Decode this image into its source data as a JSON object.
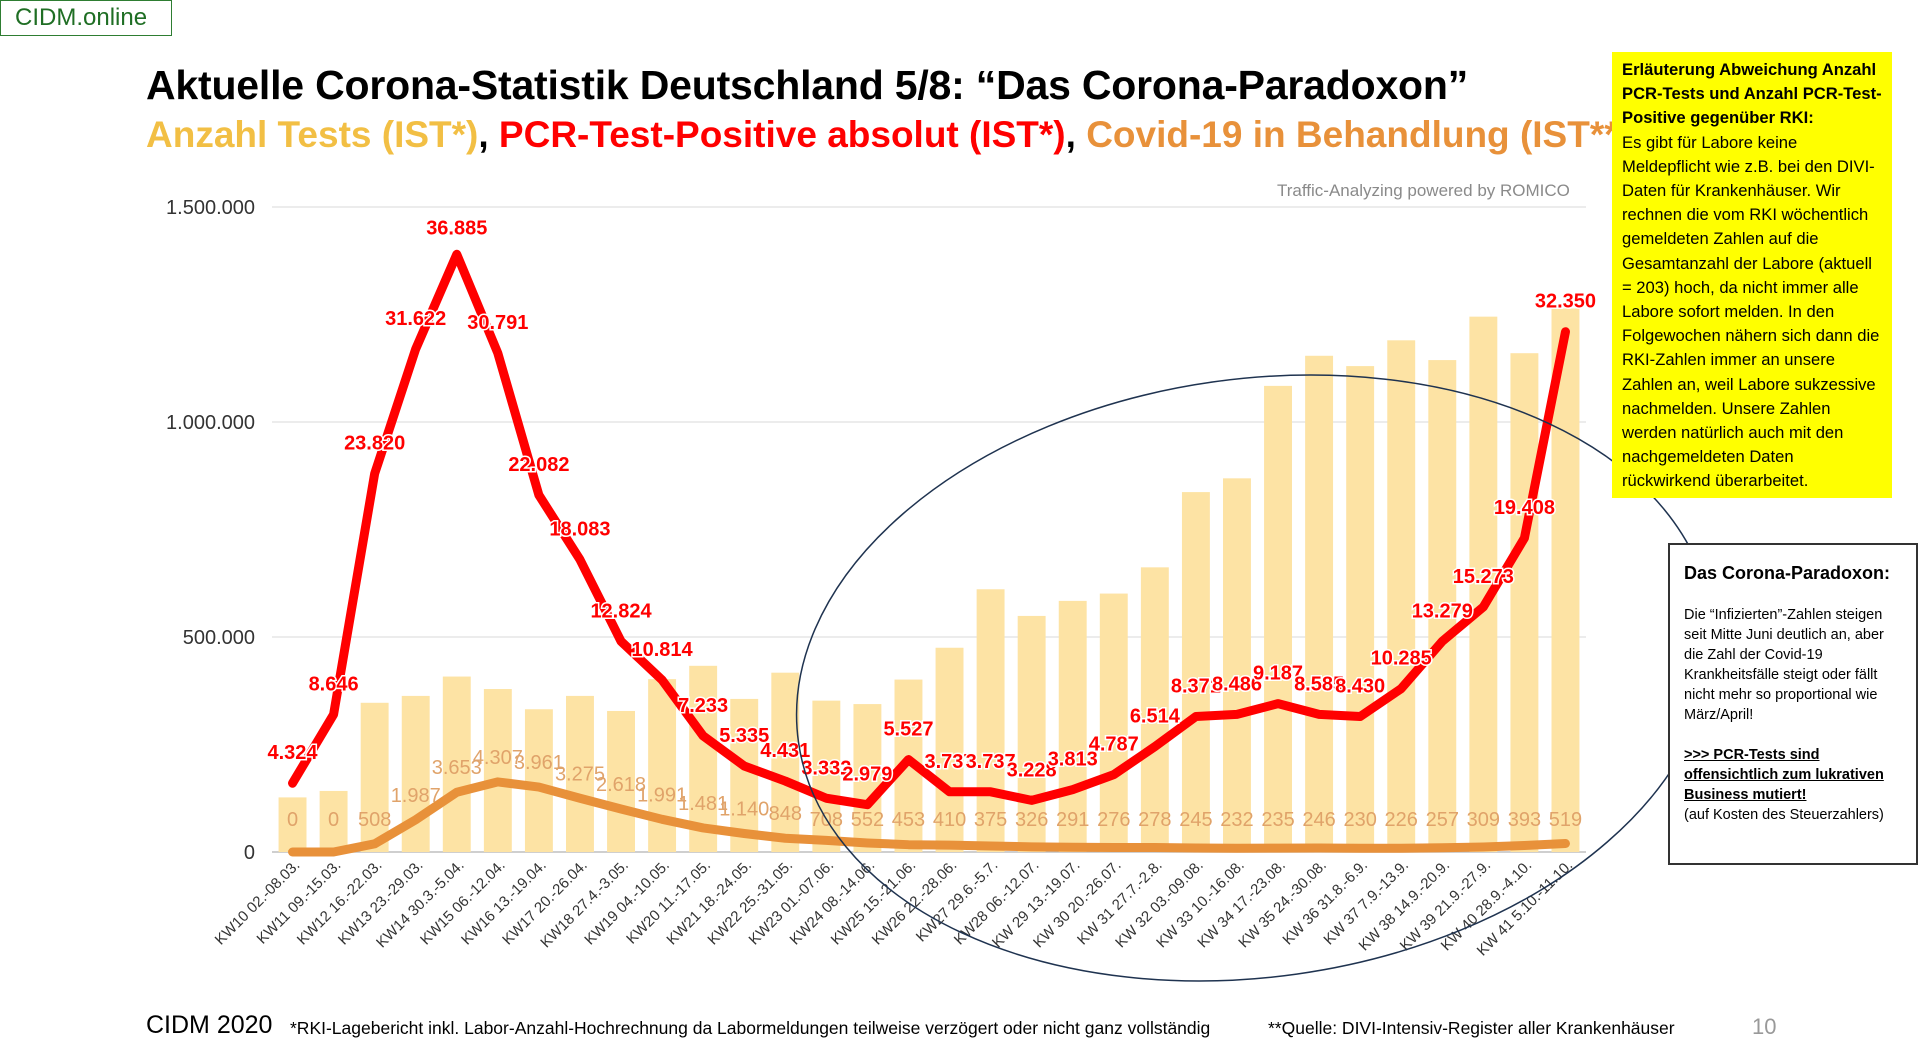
{
  "brand": "CIDM.online",
  "title": "Aktuelle Corona-Statistik Deutschland 5/8: “Das Corona-Paradoxon”",
  "subtitle": {
    "part1": "Anzahl Tests (IST*)",
    "sep1": ", ",
    "part2": "PCR-Test-Positive absolut (IST*)",
    "sep2": ", ",
    "part3": "Covid-19 in Behandlung (IST**)"
  },
  "traffic_note": "Traffic-Analyzing powered by ROMICO",
  "yellow_box": {
    "heading": "Erläuterung Abweichung Anzahl PCR-Tests und Anzahl PCR-Test-Positive gegenüber RKI:",
    "body": "Es gibt für Labore keine Meldepflicht wie z.B. bei den DIVI-Daten für Krankenhäuser. Wir rechnen die vom RKI wöchentlich gemeldeten Zahlen auf die Gesamtanzahl der Labore (aktuell = 203) hoch, da nicht immer alle Labore sofort melden. In den Folgewochen nähern sich dann die RKI-Zahlen immer an unsere Zahlen an, weil Labore sukzessive nachmelden. Unsere Zahlen werden natürlich auch mit den nachgemeldeten Daten rückwirkend überarbeitet."
  },
  "paradox_box": {
    "title": "Das Corona-Paradoxon:",
    "body": "Die “Infizierten”-Zahlen steigen seit Mitte Juni deutlich an, aber die Zahl der Covid-19 Krankheitsfälle steigt oder fällt nicht mehr so proportional wie März/April!",
    "link": ">>> PCR-Tests sind offensichtlich zum lukrativen Business mutiert!",
    "note": "(auf Kosten des Steuerzahlers)"
  },
  "footer": {
    "left": "CIDM 2020",
    "note1": "*RKI-Lagebericht inkl. Labor-Anzahl-Hochrechnung da Labormeldungen teilweise verzögert oder nicht ganz vollständig",
    "note2": "**Quelle: DIVI-Intensiv-Register aller Krankenhäuser",
    "page": "10"
  },
  "colors": {
    "tests_bar": "#fde3a4",
    "positives_line": "#ff0000",
    "positives_label": "#ff0000",
    "treatment_line": "#e8913a",
    "treatment_label": "#e0a36a",
    "grid": "#d9d9d9",
    "circle": "#1f3350"
  },
  "chart_data": {
    "type": "bar",
    "categories": [
      "KW10 02.-08.03.",
      "KW11 09.-15.03.",
      "KW12 16.-22.03.",
      "KW13 23.-29.03.",
      "KW14 30.3.-5.04.",
      "KW15 06.-12.04.",
      "KW16 13.-19.04.",
      "KW17 20.-26.04.",
      "KW18 27.4.-3.05.",
      "KW19 04.-10.05.",
      "KW20 11.-17.05.",
      "KW21 18.-24.05.",
      "KW22 25.-31.05.",
      "KW23 01.-07.06.",
      "KW24 08.-14.06.",
      "KW25 15.-21.06.",
      "KW26 22.-28.06.",
      "KW27 29.6.-5.7.",
      "KW28 06.-12.07.",
      "KW 29 13.-19.07.",
      "KW 30 20.-26.07.",
      "KW 31 27.7.-2.8.",
      "KW 32 03.-09.08.",
      "KW 33 10.-16.08.",
      "KW 34 17.-23.08.",
      "KW 35 24.-30.08.",
      "KW 36 31.8.-6.9.",
      "KW 37 7.9.-13.9.",
      "KW 38 14.9.-20.9.",
      "KW 39 21.9.-27.9.",
      "KW 40 28.9.-4.10.",
      "KW 41 5.10.-11.10."
    ],
    "yticks": [
      "0",
      "500.000",
      "1.000.000",
      "1.500.000"
    ],
    "ylim": [
      0,
      1500000
    ],
    "grid": true,
    "series": [
      {
        "kind": "bar",
        "values": [
          127000,
          142000,
          347000,
          363000,
          408000,
          379000,
          332000,
          363000,
          328000,
          402000,
          433000,
          356000,
          417000,
          352000,
          344000,
          401000,
          475000,
          611000,
          549000,
          584000,
          601000,
          662000,
          837000,
          869000,
          1084000,
          1154000,
          1130000,
          1190000,
          1144000,
          1245000,
          1160000,
          1264000
        ]
      },
      {
        "kind": "line",
        "values": [
          4324,
          8646,
          23820,
          31622,
          36885,
          30791,
          22082,
          18083,
          12824,
          10814,
          7233,
          5335,
          4431,
          3332,
          2979,
          5527,
          3737,
          3737,
          3228,
          3813,
          4787,
          6514,
          8371,
          8486,
          9187,
          8585,
          8430,
          10285,
          13279,
          15273,
          19408,
          32350
        ],
        "plot_values": [
          160000,
          320000,
          880000,
          1170000,
          1390000,
          1160000,
          830000,
          680000,
          490000,
          400000,
          270000,
          200000,
          165000,
          125000,
          110000,
          215000,
          140000,
          140000,
          120000,
          145000,
          180000,
          245000,
          315000,
          320000,
          345000,
          320000,
          315000,
          380000,
          490000,
          570000,
          730000,
          1210000
        ],
        "labels": [
          "4.324",
          "8.646",
          "23.820",
          "31.622",
          "36.885",
          "30.791",
          "22.082",
          "18.083",
          "12.824",
          "10.814",
          "7.233",
          "5.335",
          "4.431",
          "3.332",
          "2.979",
          "5.527",
          "3.737",
          "3.737",
          "3.228",
          "3.813",
          "4.787",
          "6.514",
          "8.371",
          "8.486",
          "9.187",
          "8.585",
          "8.430",
          "10.285",
          "13.279",
          "15.273",
          "19.408",
          "32.350"
        ]
      },
      {
        "kind": "line",
        "values": [
          0,
          0,
          508,
          1987,
          3653,
          4307,
          3961,
          3275,
          2618,
          1991,
          1481,
          1140,
          848,
          708,
          552,
          453,
          410,
          375,
          326,
          291,
          276,
          278,
          245,
          232,
          235,
          246,
          230,
          226,
          257,
          309,
          393,
          519
        ],
        "plot_values": [
          0,
          0,
          19000,
          75000,
          139000,
          163000,
          151000,
          125000,
          100000,
          76000,
          56000,
          43000,
          32000,
          27000,
          21000,
          17000,
          16000,
          14000,
          12000,
          11000,
          10500,
          10600,
          9300,
          8800,
          8900,
          9300,
          8700,
          8600,
          9800,
          11700,
          15000,
          19700
        ],
        "labels": [
          "0",
          "0",
          "508",
          "1.987",
          "3.653",
          "4.307",
          "3.961",
          "3.275",
          "2.618",
          "1.991",
          "1.481",
          "1.140",
          "848",
          "708",
          "552",
          "453",
          "410",
          "375",
          "326",
          "291",
          "276",
          "278",
          "245",
          "232",
          "235",
          "246",
          "230",
          "226",
          "257",
          "309",
          "393",
          "519"
        ]
      }
    ]
  }
}
